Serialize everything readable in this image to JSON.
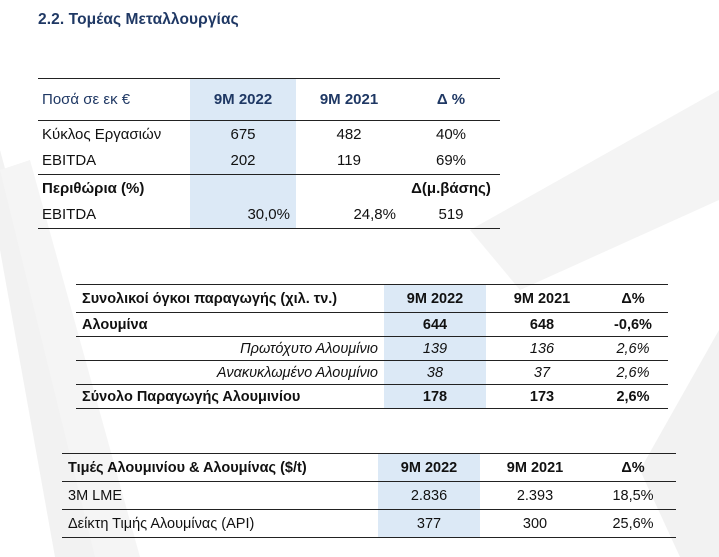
{
  "heading": "2.2.  Τομέας Μεταλλουργίας",
  "colors": {
    "heading": "#1f3864",
    "highlight": "#dce9f6"
  },
  "table1": {
    "header": [
      "Ποσά σε εκ €",
      "9M 2022",
      "9M 2021",
      "Δ %"
    ],
    "rows": [
      [
        "Κύκλος Εργασιών",
        "675",
        "482",
        "40%"
      ],
      [
        "EBITDA",
        "202",
        "119",
        "69%"
      ]
    ],
    "margins_label": "Περιθώρια (%)",
    "margins_delta_label": "Δ(μ.βάσης)",
    "margins_row": [
      "EBITDA",
      "30,0%",
      "24,8%",
      "519"
    ]
  },
  "table2": {
    "header_main": "Συνολικοί όγκοι παραγωγής",
    "header_unit": "(χιλ. τν.)",
    "header": [
      "9M 2022",
      "9M 2021",
      "Δ%"
    ],
    "rows": [
      [
        "Αλουμίνα",
        "644",
        "648",
        "-0,6%"
      ],
      [
        "Πρωτόχυτο Αλουμίνιο",
        "139",
        "136",
        "2,6%"
      ],
      [
        "Ανακυκλωμένο Αλουμίνιο",
        "38",
        "37",
        "2,6%"
      ],
      [
        "Σύνολο Παραγωγής Αλουμινίου",
        "178",
        "173",
        "2,6%"
      ]
    ]
  },
  "table3": {
    "header": [
      "Τιμές Αλουμινίου & Αλουμίνας ($/t)",
      "9M 2022",
      "9M 2021",
      "Δ%"
    ],
    "rows": [
      [
        "3M LME",
        "2.836",
        "2.393",
        "18,5%"
      ],
      [
        "Δείκτη Τιμής Αλουμίνας (API)",
        "377",
        "300",
        "25,6%"
      ]
    ]
  }
}
